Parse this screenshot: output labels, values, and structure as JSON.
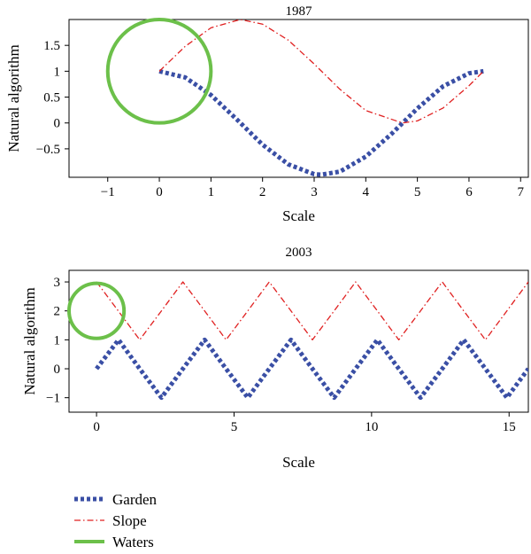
{
  "chart_data": [
    {
      "type": "line",
      "title": "1987",
      "xlabel": "Scale",
      "ylabel": "Natural algorithm",
      "xlim": [
        -1.75,
        7.15
      ],
      "ylim": [
        -1.05,
        2.0
      ],
      "xticks": [
        -1,
        0,
        1,
        2,
        3,
        4,
        5,
        6,
        7
      ],
      "xtick_labels": [
        "−1",
        "0",
        "1",
        "2",
        "3",
        "4",
        "5",
        "6",
        "7"
      ],
      "yticks": [
        -0.5,
        0,
        0.5,
        1,
        1.5
      ],
      "ytick_labels": [
        "−0.5",
        "0",
        "0.5",
        "1",
        "1.5"
      ],
      "grid": false,
      "series": [
        {
          "name": "Garden",
          "color": "#3a4fa5",
          "style": "dotted",
          "x": [
            0,
            0.5,
            1.0,
            1.5,
            2.0,
            2.5,
            3.0,
            3.14,
            3.5,
            4.0,
            4.5,
            5.0,
            5.5,
            6.0,
            6.28
          ],
          "y": [
            1,
            0.88,
            0.54,
            0.07,
            -0.42,
            -0.8,
            -0.99,
            -1,
            -0.94,
            -0.65,
            -0.21,
            0.28,
            0.71,
            0.96,
            1
          ]
        },
        {
          "name": "Slope",
          "color": "#e02020",
          "style": "dashdot",
          "x": [
            0,
            0.5,
            1.0,
            1.57,
            2.0,
            2.5,
            3.0,
            3.5,
            4.0,
            4.71,
            5.0,
            5.5,
            6.0,
            6.28
          ],
          "y": [
            1,
            1.48,
            1.84,
            2.0,
            1.91,
            1.6,
            1.14,
            0.65,
            0.24,
            0,
            0.04,
            0.29,
            0.72,
            1
          ]
        }
      ],
      "circles": [
        {
          "series": "Waters",
          "color": "#6cc04a",
          "x": 0,
          "y": 1,
          "r": 1.0
        }
      ]
    },
    {
      "type": "line",
      "title": "2003",
      "xlabel": "Scale",
      "ylabel": "Natural algorithm",
      "xlim": [
        -1.0,
        15.7
      ],
      "ylim": [
        -1.5,
        3.4
      ],
      "xticks": [
        0,
        5,
        10,
        15
      ],
      "xtick_labels": [
        "0",
        "5",
        "10",
        "15"
      ],
      "yticks": [
        -1,
        0,
        1,
        2,
        3
      ],
      "ytick_labels": [
        "−1",
        "0",
        "1",
        "2",
        "3"
      ],
      "grid": false,
      "series": [
        {
          "name": "Garden",
          "color": "#3a4fa5",
          "style": "dotted",
          "x": [
            0,
            0.8,
            1.57,
            2.36,
            3.14,
            3.93,
            4.71,
            5.5,
            6.28,
            7.07,
            7.85,
            8.64,
            9.42,
            10.21,
            10.99,
            11.78,
            12.57,
            13.35,
            14.14,
            14.92,
            15.7
          ],
          "y": [
            0,
            1,
            0,
            -1,
            0,
            1,
            0,
            -1,
            0,
            1,
            0,
            -1,
            0,
            1,
            0,
            -1,
            0,
            1,
            0,
            -1,
            0
          ]
        },
        {
          "name": "Slope",
          "color": "#e02020",
          "style": "dashdot",
          "x": [
            0,
            0.79,
            1.57,
            2.36,
            3.14,
            3.93,
            4.71,
            5.5,
            6.28,
            7.07,
            7.85,
            8.64,
            9.42,
            10.21,
            10.99,
            11.78,
            12.57,
            13.35,
            14.14,
            14.92,
            15.7
          ],
          "y": [
            3,
            2,
            1,
            2,
            3,
            2,
            1,
            2,
            3,
            2,
            1,
            2,
            3,
            2,
            1,
            2,
            3,
            2,
            1,
            2,
            3
          ]
        }
      ],
      "circles": [
        {
          "series": "Waters",
          "color": "#6cc04a",
          "x": 0,
          "y": 2,
          "r": 1.0
        }
      ]
    }
  ],
  "legend": {
    "placement": "bottom-left",
    "items": [
      {
        "label": "Garden",
        "color": "#3a4fa5",
        "style": "dotted"
      },
      {
        "label": "Slope",
        "color": "#e02020",
        "style": "dashdot"
      },
      {
        "label": "Waters",
        "color": "#6cc04a",
        "style": "solid"
      }
    ]
  }
}
